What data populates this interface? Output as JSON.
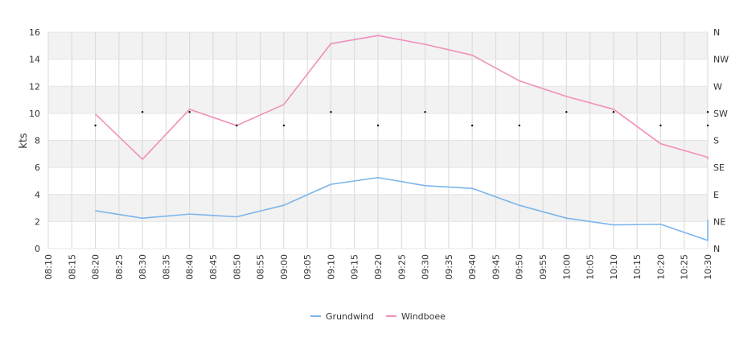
{
  "chart_data": {
    "type": "line",
    "xlabel": "",
    "ylabel": "kts",
    "ylim": [
      0,
      16
    ],
    "yticks": [
      0,
      2,
      4,
      6,
      8,
      10,
      12,
      14,
      16
    ],
    "x_ticks": [
      "08:10",
      "08:15",
      "08:20",
      "08:25",
      "08:30",
      "08:35",
      "08:40",
      "08:45",
      "08:50",
      "08:55",
      "09:00",
      "09:05",
      "09:10",
      "09:15",
      "09:20",
      "09:25",
      "09:30",
      "09:35",
      "09:40",
      "09:45",
      "09:50",
      "09:55",
      "10:00",
      "10:05",
      "10:10",
      "10:15",
      "10:20",
      "10:25",
      "10:30"
    ],
    "grid": true,
    "right_axis": {
      "labels": [
        "N",
        "NE",
        "E",
        "SE",
        "S",
        "SW",
        "W",
        "NW",
        "N"
      ]
    },
    "series": [
      {
        "name": "Grundwind",
        "color": "#7cb5ec",
        "points": [
          [
            "08:20",
            2.8
          ],
          [
            "08:30",
            2.25
          ],
          [
            "08:40",
            2.55
          ],
          [
            "08:50",
            2.35
          ],
          [
            "09:00",
            3.2
          ],
          [
            "09:10",
            4.75
          ],
          [
            "09:20",
            5.25
          ],
          [
            "09:30",
            4.65
          ],
          [
            "09:40",
            4.45
          ],
          [
            "09:50",
            3.2
          ],
          [
            "10:00",
            2.25
          ],
          [
            "10:10",
            1.75
          ],
          [
            "10:20",
            1.8
          ],
          [
            "10:30",
            0.6
          ],
          [
            "10:30",
            2.15
          ]
        ]
      },
      {
        "name": "Windboee",
        "color": "#f28fbb",
        "points": [
          [
            "08:20",
            9.95
          ],
          [
            "08:30",
            6.6
          ],
          [
            "08:40",
            10.3
          ],
          [
            "08:50",
            9.1
          ],
          [
            "09:00",
            10.65
          ],
          [
            "09:10",
            15.15
          ],
          [
            "09:20",
            15.75
          ],
          [
            "09:30",
            15.1
          ],
          [
            "09:40",
            14.3
          ],
          [
            "09:50",
            12.4
          ],
          [
            "10:00",
            11.25
          ],
          [
            "10:10",
            10.3
          ],
          [
            "10:20",
            7.75
          ],
          [
            "10:30",
            6.75
          ],
          [
            "10:30",
            6.6
          ]
        ]
      }
    ],
    "direction_markers": [
      [
        "08:20",
        9.1
      ],
      [
        "08:30",
        10.1
      ],
      [
        "08:40",
        10.1
      ],
      [
        "08:50",
        9.1
      ],
      [
        "09:00",
        9.1
      ],
      [
        "09:10",
        10.1
      ],
      [
        "09:20",
        9.1
      ],
      [
        "09:30",
        10.1
      ],
      [
        "09:40",
        9.1
      ],
      [
        "09:50",
        9.1
      ],
      [
        "10:00",
        10.1
      ],
      [
        "10:10",
        10.1
      ],
      [
        "10:20",
        9.1
      ],
      [
        "10:30",
        10.1
      ],
      [
        "10:30",
        9.1
      ]
    ],
    "legend": {
      "position": "bottom-center",
      "items": [
        "Grundwind",
        "Windboee"
      ]
    }
  }
}
